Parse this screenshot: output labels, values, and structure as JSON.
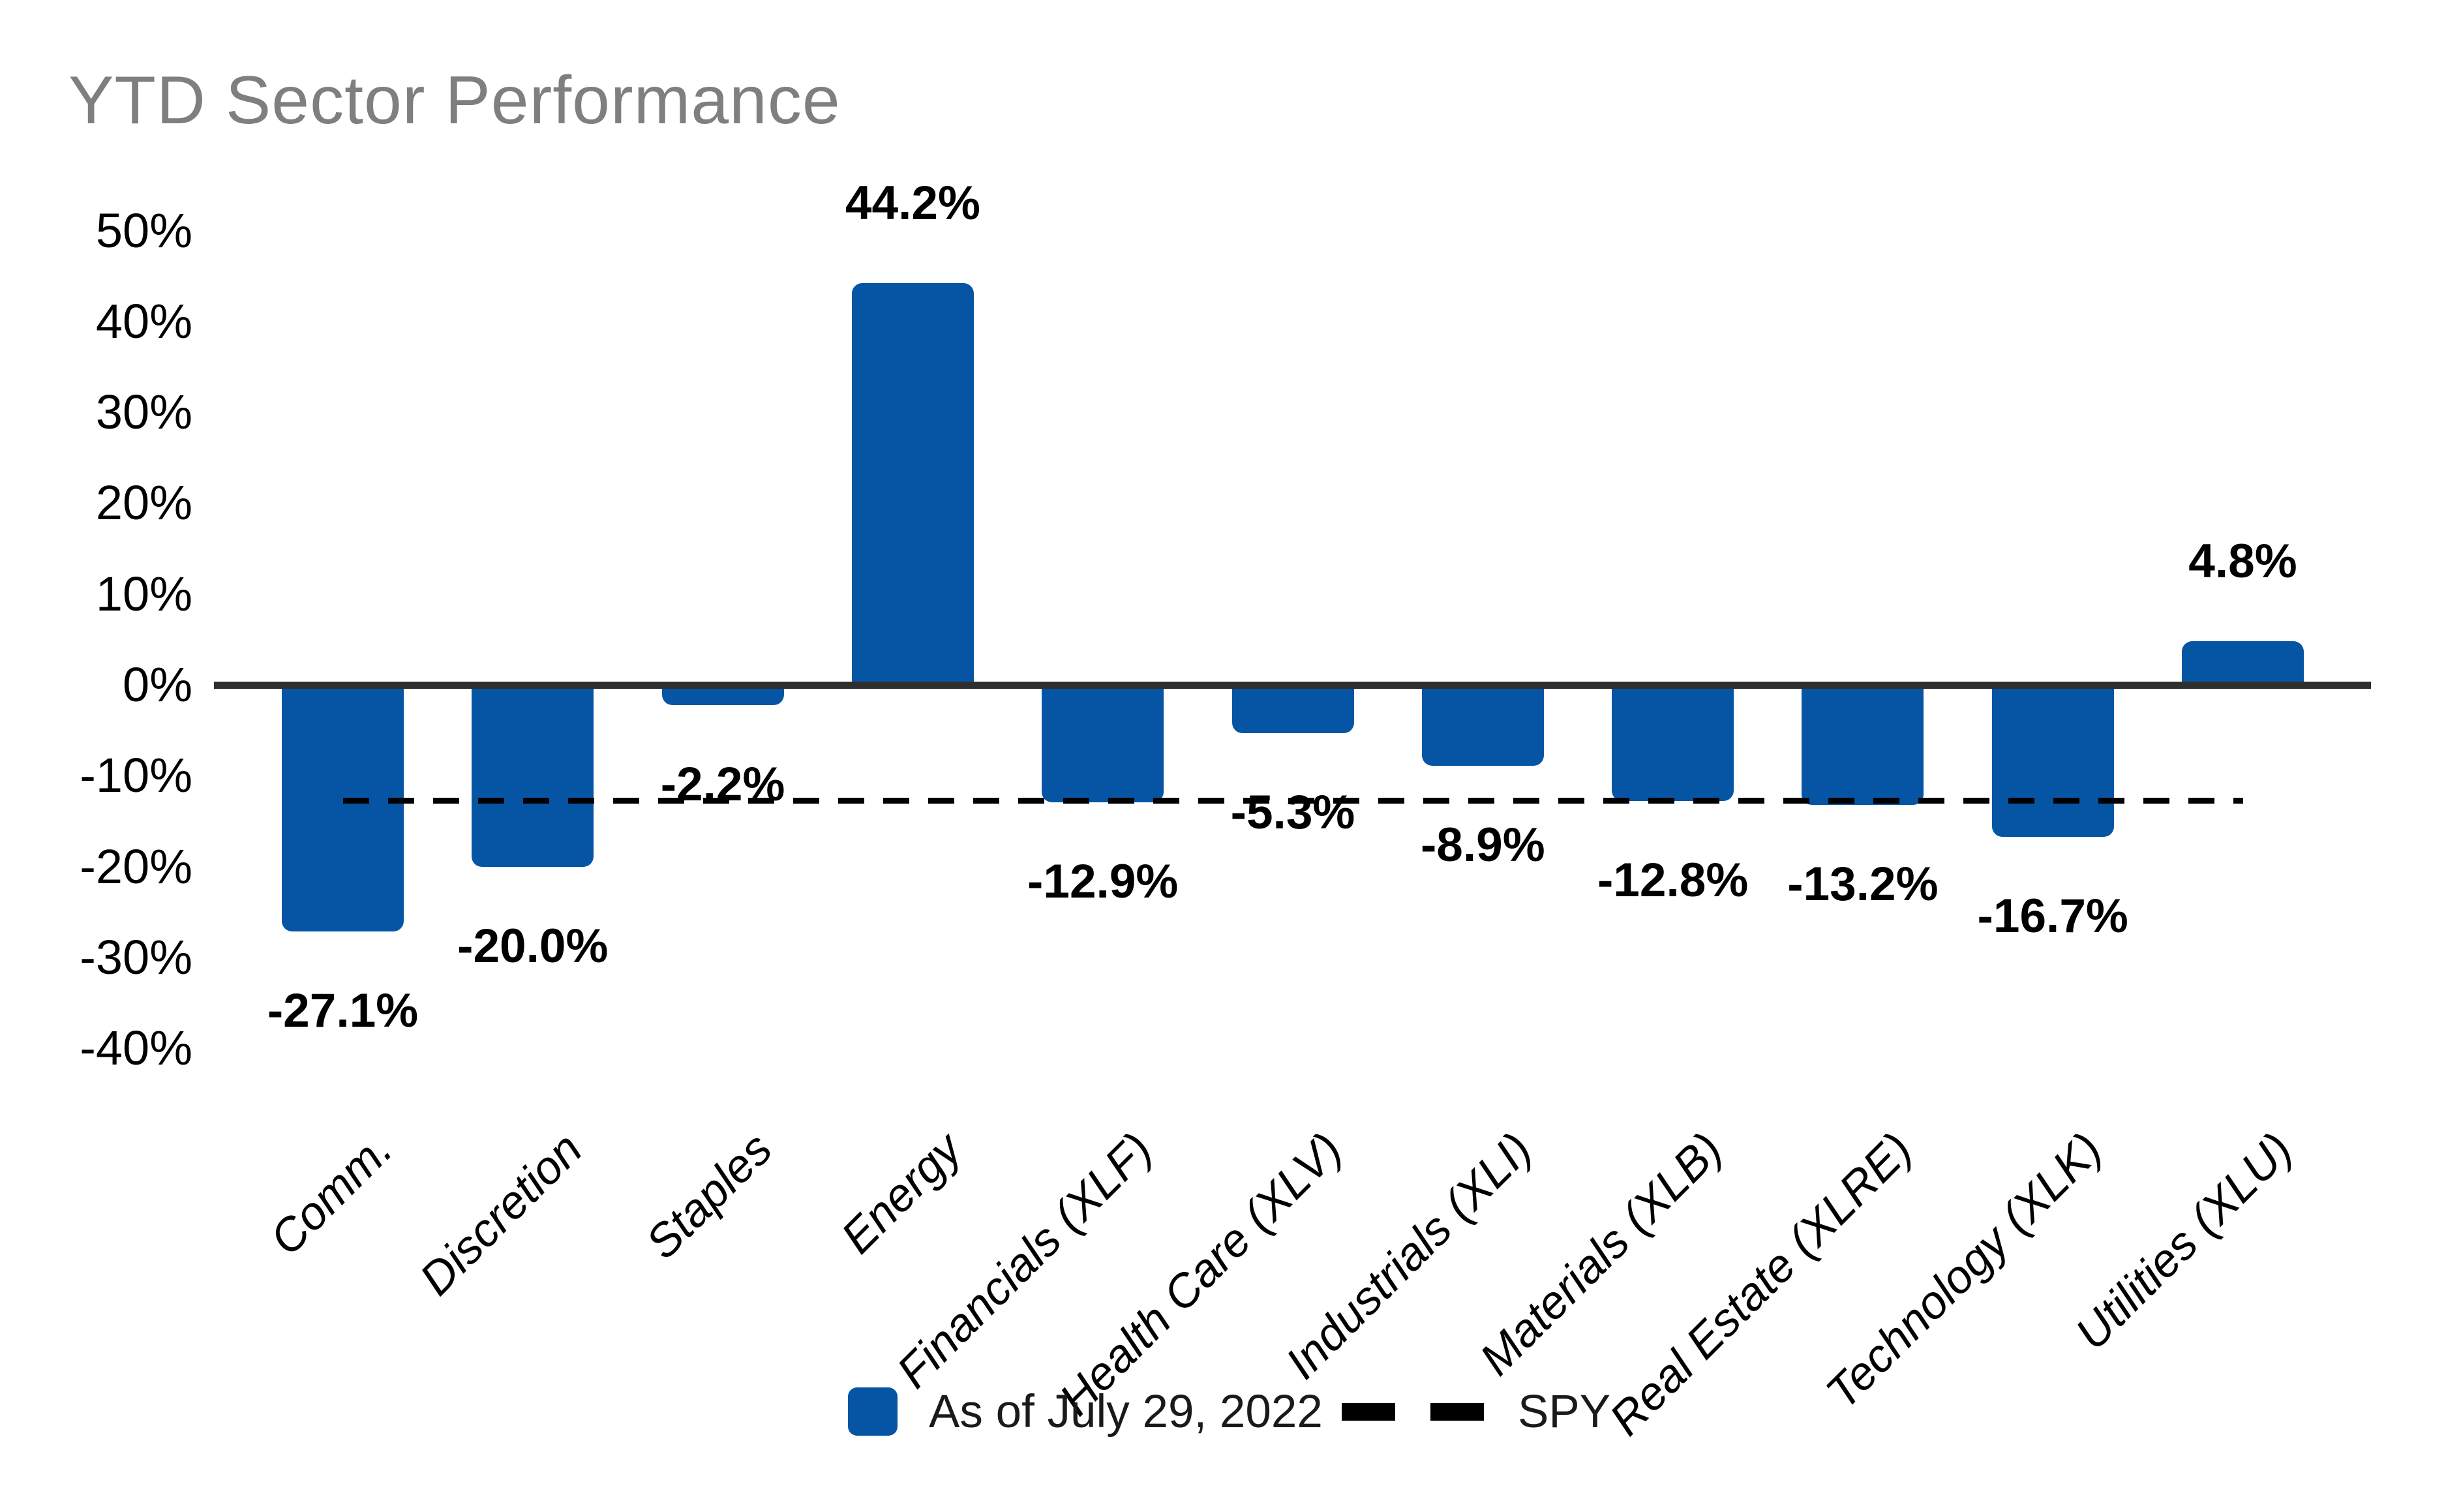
{
  "chart_data": {
    "type": "bar",
    "title": "YTD Sector Performance",
    "categories": [
      "Comm.",
      "Discretion",
      "Staples",
      "Energy",
      "Financials (XLF)",
      "Health Care (XLV)",
      "Industrials (XLI)",
      "Materials (XLB)",
      "Real Estate (XLRE)",
      "Technology (XLK)",
      "Utilities (XLU)"
    ],
    "values": [
      -27.1,
      -20.0,
      -2.2,
      44.2,
      -12.9,
      -5.3,
      -8.9,
      -12.8,
      -13.2,
      -16.7,
      4.8
    ],
    "bar_labels": [
      "-27.1%",
      "-20.0%",
      "-2.2%",
      "44.2%",
      "-12.9%",
      "-5.3%",
      "-8.9%",
      "-12.8%",
      "-13.2%",
      "-16.7%",
      "4.8%"
    ],
    "ytick_labels": [
      "50%",
      "40%",
      "30%",
      "20%",
      "10%",
      "0%",
      "-10%",
      "-20%",
      "-30%",
      "-40%"
    ],
    "ytick_values": [
      50,
      40,
      30,
      20,
      10,
      0,
      -10,
      -20,
      -30,
      -40
    ],
    "ylim": [
      -45,
      55
    ],
    "xlabel": "",
    "ylabel": "",
    "grid": false,
    "spy_line_value": -12.7,
    "legend_position": "bottom-center",
    "legend": {
      "bar_series_label": "As of July 29, 2022",
      "line_series_label": "SPY"
    },
    "colors": {
      "bar": "#0555a4",
      "title": "#7f7f7f",
      "line": "#000000",
      "axis": "#2f2f2f"
    }
  }
}
